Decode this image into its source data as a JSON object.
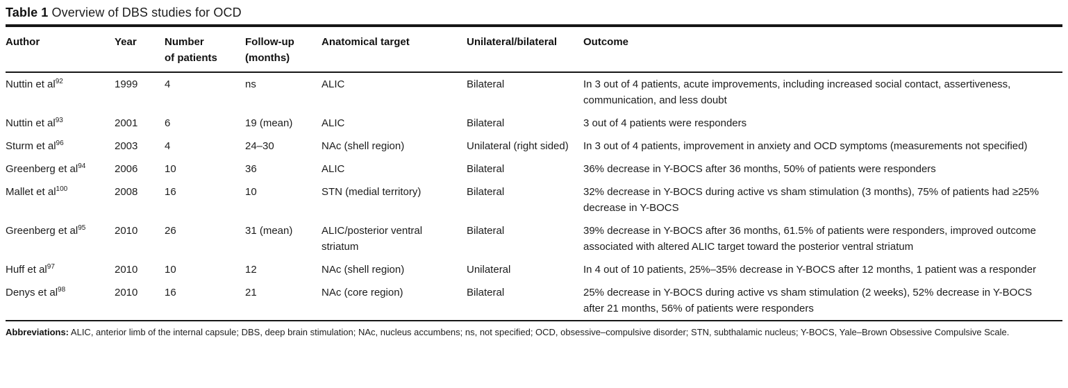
{
  "title": {
    "label": "Table 1",
    "caption": "Overview of DBS studies for OCD"
  },
  "table": {
    "headers": [
      "Author",
      "Year",
      "Number\nof patients",
      "Follow-up\n(months)",
      "Anatomical target",
      "Unilateral/bilateral",
      "Outcome"
    ],
    "rows": [
      {
        "author": "Nuttin et al",
        "ref": "92",
        "year": "1999",
        "patients": "4",
        "followup": "ns",
        "target": "ALIC",
        "laterality": "Bilateral",
        "outcome": "In 3 out of 4 patients, acute improvements, including increased social contact, assertiveness, communication, and less doubt"
      },
      {
        "author": "Nuttin et al",
        "ref": "93",
        "year": "2001",
        "patients": "6",
        "followup": "19 (mean)",
        "target": "ALIC",
        "laterality": "Bilateral",
        "outcome": "3 out of 4 patients were responders"
      },
      {
        "author": "Sturm et al",
        "ref": "96",
        "year": "2003",
        "patients": "4",
        "followup": "24–30",
        "target": "NAc (shell region)",
        "laterality": "Unilateral (right sided)",
        "outcome": "In 3 out of 4 patients, improvement in anxiety and OCD symptoms (measurements not specified)"
      },
      {
        "author": "Greenberg et al",
        "ref": "94",
        "year": "2006",
        "patients": "10",
        "followup": "36",
        "target": "ALIC",
        "laterality": "Bilateral",
        "outcome": "36% decrease in Y-BOCS after 36 months, 50% of patients were responders"
      },
      {
        "author": "Mallet et al",
        "ref": "100",
        "year": "2008",
        "patients": "16",
        "followup": "10",
        "target": "STN (medial territory)",
        "laterality": "Bilateral",
        "outcome": "32% decrease in Y-BOCS during active vs sham stimulation (3 months), 75% of patients had ≥25% decrease in Y-BOCS"
      },
      {
        "author": "Greenberg et al",
        "ref": "95",
        "year": "2010",
        "patients": "26",
        "followup": "31 (mean)",
        "target": "ALIC/posterior ventral striatum",
        "laterality": "Bilateral",
        "outcome": "39% decrease in Y-BOCS after 36 months, 61.5% of patients were responders, improved outcome associated with altered ALIC target toward the posterior ventral striatum"
      },
      {
        "author": "Huff et al",
        "ref": "97",
        "year": "2010",
        "patients": "10",
        "followup": "12",
        "target": "NAc (shell region)",
        "laterality": "Unilateral",
        "outcome": "In 4 out of 10 patients, 25%–35% decrease in Y-BOCS after 12 months, 1 patient was a responder"
      },
      {
        "author": "Denys et al",
        "ref": "98",
        "year": "2010",
        "patients": "16",
        "followup": "21",
        "target": "NAc (core region)",
        "laterality": "Bilateral",
        "outcome": "25% decrease in Y-BOCS during active vs sham stimulation (2 weeks), 52% decrease in Y-BOCS after 21 months, 56% of patients were responders"
      }
    ]
  },
  "footer": {
    "label": "Abbreviations:",
    "text": "ALIC, anterior limb of the internal capsule; DBS, deep brain stimulation; NAc, nucleus accumbens; ns, not specified; OCD, obsessive–compulsive disorder; STN, subthalamic nucleus; Y-BOCS, Yale–Brown Obsessive Compulsive Scale."
  }
}
